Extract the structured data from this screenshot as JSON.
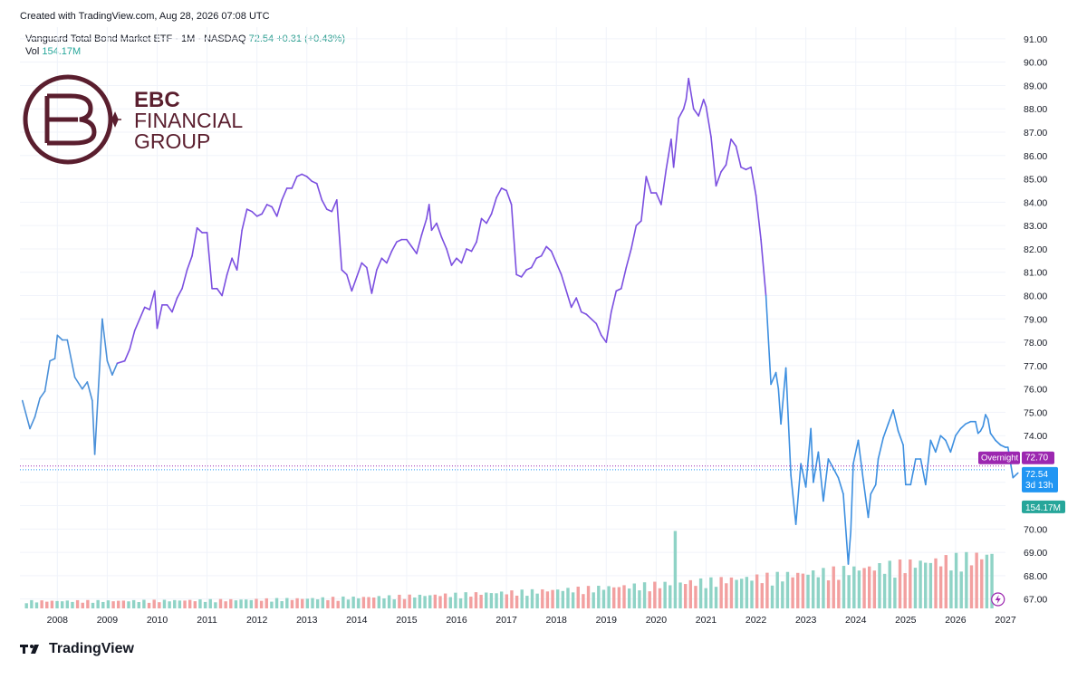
{
  "header": {
    "created": "Created with TradingView.com, Aug 28, 2026 07:08 UTC"
  },
  "legend": {
    "symbol": "Vanguard Total Bond Market ETF · 1M · NASDAQ",
    "price": "72.54",
    "change": "+0.31 (+0.43%)",
    "vol_label": "Vol",
    "vol_value": "154.17M"
  },
  "logo": {
    "line1": "EBC",
    "line2": "FINANCIAL",
    "line3": "GROUP",
    "color": "#5a1e2e"
  },
  "footer": {
    "brand": "TradingView"
  },
  "colors": {
    "line_early": "#4a90d9",
    "line_mid": "#7b4fe0",
    "line_late": "#3d8fe0",
    "vol_up": "#8fd3c6",
    "vol_down": "#f2a0a0",
    "overnight": "#9c27b0",
    "price_tag": "#2196f3",
    "vol_tag": "#26a69a"
  },
  "badges": {
    "overnight_label": "Overnight",
    "overnight_price": "72.70",
    "current_price": "72.54",
    "countdown": "3d 13h",
    "volume": "154.17M"
  },
  "chart_data": {
    "type": "line",
    "title": "Vanguard Total Bond Market ETF · 1M · NASDAQ",
    "xlabel": "",
    "ylabel": "",
    "x_ticks": [
      "2008",
      "2009",
      "2010",
      "2011",
      "2012",
      "2013",
      "2014",
      "2015",
      "2016",
      "2017",
      "2018",
      "2019",
      "2020",
      "2021",
      "2022",
      "2023",
      "2024",
      "2025",
      "2026",
      "2027"
    ],
    "y_ticks": [
      "67.00",
      "68.00",
      "69.00",
      "70.00",
      "71.00",
      "72.00",
      "73.00",
      "74.00",
      "75.00",
      "76.00",
      "77.00",
      "78.00",
      "79.00",
      "80.00",
      "81.00",
      "82.00",
      "83.00",
      "84.00",
      "85.00",
      "86.00",
      "87.00",
      "88.00",
      "89.00",
      "90.00",
      "91.00"
    ],
    "xlim": [
      2007.25,
      2027.0
    ],
    "ylim": [
      66.6,
      91.5
    ],
    "series": [
      {
        "points": [
          [
            2007.3,
            75.5
          ],
          [
            2007.45,
            74.3
          ],
          [
            2007.55,
            74.8
          ],
          [
            2007.65,
            75.6
          ],
          [
            2007.75,
            75.9
          ],
          [
            2007.85,
            77.2
          ],
          [
            2007.95,
            77.3
          ],
          [
            2008.0,
            78.3
          ],
          [
            2008.1,
            78.1
          ],
          [
            2008.2,
            78.1
          ],
          [
            2008.35,
            76.5
          ],
          [
            2008.5,
            76.0
          ],
          [
            2008.6,
            76.3
          ],
          [
            2008.7,
            75.5
          ],
          [
            2008.75,
            73.2
          ],
          [
            2008.9,
            79.0
          ],
          [
            2009.0,
            77.2
          ],
          [
            2009.1,
            76.6
          ],
          [
            2009.2,
            77.1
          ],
          [
            2009.35,
            77.2
          ],
          [
            2009.45,
            77.7
          ],
          [
            2009.55,
            78.5
          ],
          [
            2009.65,
            79.0
          ],
          [
            2009.75,
            79.5
          ],
          [
            2009.85,
            79.4
          ],
          [
            2009.95,
            80.2
          ],
          [
            2010.0,
            78.6
          ],
          [
            2010.1,
            79.6
          ],
          [
            2010.2,
            79.6
          ],
          [
            2010.3,
            79.3
          ],
          [
            2010.4,
            79.9
          ],
          [
            2010.5,
            80.3
          ],
          [
            2010.6,
            81.1
          ],
          [
            2010.7,
            81.7
          ],
          [
            2010.8,
            82.9
          ],
          [
            2010.9,
            82.7
          ],
          [
            2011.0,
            82.7
          ],
          [
            2011.1,
            80.3
          ],
          [
            2011.2,
            80.3
          ],
          [
            2011.3,
            80.0
          ],
          [
            2011.4,
            80.9
          ],
          [
            2011.5,
            81.6
          ],
          [
            2011.6,
            81.1
          ],
          [
            2011.7,
            82.8
          ],
          [
            2011.8,
            83.7
          ],
          [
            2011.9,
            83.6
          ],
          [
            2012.0,
            83.4
          ],
          [
            2012.1,
            83.5
          ],
          [
            2012.2,
            83.9
          ],
          [
            2012.3,
            83.8
          ],
          [
            2012.4,
            83.4
          ],
          [
            2012.5,
            84.1
          ],
          [
            2012.6,
            84.6
          ],
          [
            2012.7,
            84.6
          ],
          [
            2012.8,
            85.1
          ],
          [
            2012.9,
            85.2
          ],
          [
            2013.0,
            85.1
          ],
          [
            2013.1,
            84.9
          ],
          [
            2013.2,
            84.8
          ],
          [
            2013.3,
            84.1
          ],
          [
            2013.4,
            83.7
          ],
          [
            2013.5,
            83.6
          ],
          [
            2013.6,
            84.1
          ],
          [
            2013.7,
            81.1
          ],
          [
            2013.8,
            80.9
          ],
          [
            2013.9,
            80.2
          ],
          [
            2014.0,
            80.8
          ],
          [
            2014.1,
            81.4
          ],
          [
            2014.2,
            81.2
          ],
          [
            2014.3,
            80.1
          ],
          [
            2014.4,
            81.1
          ],
          [
            2014.5,
            81.6
          ],
          [
            2014.6,
            81.4
          ],
          [
            2014.7,
            81.9
          ],
          [
            2014.8,
            82.3
          ],
          [
            2014.9,
            82.4
          ],
          [
            2015.0,
            82.4
          ],
          [
            2015.1,
            82.1
          ],
          [
            2015.2,
            81.8
          ],
          [
            2015.3,
            82.6
          ],
          [
            2015.4,
            83.3
          ],
          [
            2015.45,
            83.9
          ],
          [
            2015.5,
            82.8
          ],
          [
            2015.6,
            83.1
          ],
          [
            2015.7,
            82.5
          ],
          [
            2015.8,
            82.0
          ],
          [
            2015.9,
            81.3
          ],
          [
            2016.0,
            81.6
          ],
          [
            2016.1,
            81.4
          ],
          [
            2016.2,
            82.0
          ],
          [
            2016.3,
            81.9
          ],
          [
            2016.4,
            82.3
          ],
          [
            2016.5,
            83.3
          ],
          [
            2016.6,
            83.1
          ],
          [
            2016.7,
            83.5
          ],
          [
            2016.8,
            84.2
          ],
          [
            2016.9,
            84.6
          ],
          [
            2017.0,
            84.5
          ],
          [
            2017.1,
            83.9
          ],
          [
            2017.2,
            80.9
          ],
          [
            2017.3,
            80.8
          ],
          [
            2017.4,
            81.1
          ],
          [
            2017.5,
            81.2
          ],
          [
            2017.6,
            81.6
          ],
          [
            2017.7,
            81.7
          ],
          [
            2017.8,
            82.1
          ],
          [
            2017.9,
            81.9
          ],
          [
            2018.0,
            81.4
          ],
          [
            2018.1,
            80.9
          ],
          [
            2018.2,
            80.2
          ],
          [
            2018.3,
            79.5
          ],
          [
            2018.4,
            79.9
          ],
          [
            2018.5,
            79.3
          ],
          [
            2018.6,
            79.2
          ],
          [
            2018.7,
            79.0
          ],
          [
            2018.8,
            78.8
          ],
          [
            2018.9,
            78.3
          ],
          [
            2019.0,
            78.0
          ],
          [
            2019.1,
            79.3
          ],
          [
            2019.2,
            80.2
          ],
          [
            2019.3,
            80.3
          ],
          [
            2019.4,
            81.2
          ],
          [
            2019.5,
            82.0
          ],
          [
            2019.6,
            83.0
          ],
          [
            2019.7,
            83.2
          ],
          [
            2019.8,
            85.1
          ],
          [
            2019.9,
            84.4
          ],
          [
            2020.0,
            84.4
          ],
          [
            2020.1,
            83.9
          ],
          [
            2020.2,
            85.4
          ],
          [
            2020.3,
            86.7
          ],
          [
            2020.35,
            85.5
          ],
          [
            2020.45,
            87.6
          ],
          [
            2020.55,
            88.0
          ],
          [
            2020.6,
            88.4
          ],
          [
            2020.65,
            89.3
          ],
          [
            2020.75,
            88.0
          ],
          [
            2020.85,
            87.7
          ],
          [
            2020.95,
            88.4
          ],
          [
            2021.0,
            88.1
          ],
          [
            2021.1,
            86.8
          ],
          [
            2021.2,
            84.7
          ],
          [
            2021.3,
            85.3
          ],
          [
            2021.4,
            85.6
          ],
          [
            2021.5,
            86.7
          ],
          [
            2021.6,
            86.4
          ],
          [
            2021.7,
            85.5
          ],
          [
            2021.8,
            85.4
          ],
          [
            2021.9,
            85.5
          ],
          [
            2022.0,
            84.3
          ],
          [
            2022.1,
            82.4
          ],
          [
            2022.2,
            80.0
          ],
          [
            2022.3,
            76.2
          ],
          [
            2022.4,
            76.7
          ],
          [
            2022.45,
            76.0
          ],
          [
            2022.5,
            74.5
          ],
          [
            2022.6,
            76.9
          ],
          [
            2022.7,
            72.3
          ],
          [
            2022.8,
            70.2
          ],
          [
            2022.9,
            72.8
          ],
          [
            2023.0,
            71.8
          ],
          [
            2023.1,
            74.3
          ],
          [
            2023.15,
            72.0
          ],
          [
            2023.25,
            73.3
          ],
          [
            2023.35,
            71.2
          ],
          [
            2023.45,
            73.0
          ],
          [
            2023.55,
            72.6
          ],
          [
            2023.65,
            72.2
          ],
          [
            2023.75,
            71.5
          ],
          [
            2023.85,
            68.5
          ],
          [
            2023.9,
            69.9
          ],
          [
            2023.95,
            72.8
          ],
          [
            2024.05,
            73.8
          ],
          [
            2024.15,
            72.1
          ],
          [
            2024.25,
            70.5
          ],
          [
            2024.3,
            71.5
          ],
          [
            2024.4,
            71.9
          ],
          [
            2024.45,
            73.0
          ],
          [
            2024.55,
            73.9
          ],
          [
            2024.65,
            74.5
          ],
          [
            2024.75,
            75.1
          ],
          [
            2024.85,
            74.2
          ],
          [
            2024.95,
            73.6
          ],
          [
            2025.0,
            71.9
          ],
          [
            2025.1,
            71.9
          ],
          [
            2025.2,
            73.0
          ],
          [
            2025.3,
            73.0
          ],
          [
            2025.4,
            71.9
          ],
          [
            2025.5,
            73.8
          ],
          [
            2025.6,
            73.3
          ],
          [
            2025.7,
            74.0
          ],
          [
            2025.8,
            73.8
          ],
          [
            2025.9,
            73.3
          ],
          [
            2026.0,
            74.0
          ],
          [
            2026.1,
            74.3
          ],
          [
            2026.2,
            74.5
          ],
          [
            2026.3,
            74.6
          ],
          [
            2026.4,
            74.6
          ],
          [
            2026.45,
            74.1
          ],
          [
            2026.5,
            74.2
          ],
          [
            2026.55,
            74.4
          ],
          [
            2026.6,
            74.9
          ],
          [
            2026.65,
            74.7
          ],
          [
            2026.7,
            74.1
          ],
          [
            2026.8,
            73.8
          ],
          [
            2026.9,
            73.6
          ],
          [
            2027.0,
            73.5
          ],
          [
            2027.05,
            73.5
          ],
          [
            2027.15,
            72.2
          ],
          [
            2027.25,
            72.4
          ]
        ]
      }
    ],
    "volume": {
      "scale_max": 154.17,
      "bars": []
    }
  }
}
